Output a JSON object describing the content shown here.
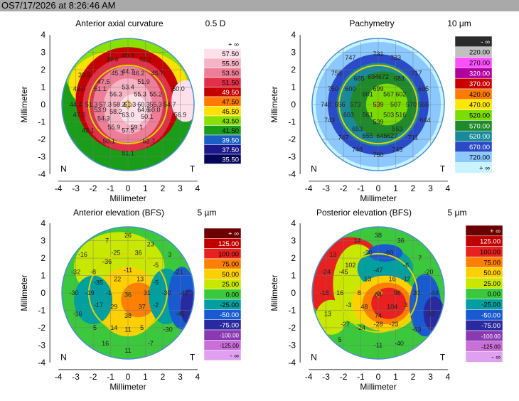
{
  "header": {
    "title": "OS7/17/2026 at 8:26:46 AM"
  },
  "chart_data": [
    {
      "type": "heatmap",
      "title": "Anterior axial curvature",
      "xlabel": "Millimeter",
      "ylabel": "Millimeter",
      "xlim": [
        -4,
        4
      ],
      "ylim": [
        -4,
        4
      ],
      "xticks": [
        "-4",
        "-3",
        "-2",
        "-1",
        "0",
        "1",
        "2",
        "3",
        "4"
      ],
      "yticks": [
        "4",
        "3",
        "2",
        "1",
        "0",
        "-1",
        "-2",
        "-3",
        "-4"
      ],
      "orientation_left": "N",
      "orientation_right": "T",
      "scale_step": "0.5 D",
      "scale_labels": [
        "+ ∞",
        "57.50",
        "55.50",
        "53.50",
        "51.50",
        "49.50",
        "47.50",
        "45.50",
        "43.50",
        "41.50",
        "39.50",
        "37.50",
        "35.50"
      ],
      "scale_colors": [
        "#ffffff",
        "#fde0ea",
        "#f7b3c6",
        "#ee7e97",
        "#e0304a",
        "#c40000",
        "#ff7a00",
        "#ffe000",
        "#8ae000",
        "#1a9e1a",
        "#1b5ec5",
        "#1a1a8c",
        "#05055a"
      ],
      "points": [
        {
          "x": -0.9,
          "y": 2.6,
          "v": "39.6"
        },
        {
          "x": 0.0,
          "y": 2.8,
          "v": "40.3"
        },
        {
          "x": 1.0,
          "y": 2.6,
          "v": "42.2"
        },
        {
          "x": -2.5,
          "y": 1.7,
          "v": "39.9"
        },
        {
          "x": -0.6,
          "y": 1.8,
          "v": "45.3"
        },
        {
          "x": 0.0,
          "y": 1.9,
          "v": "44.7"
        },
        {
          "x": 0.6,
          "y": 1.8,
          "v": "46.2"
        },
        {
          "x": 1.7,
          "y": 1.8,
          "v": "45.7"
        },
        {
          "x": -1.4,
          "y": 1.3,
          "v": "47.5"
        },
        {
          "x": 0.9,
          "y": 1.3,
          "v": "51.9"
        },
        {
          "x": -2.8,
          "y": 0.9,
          "v": "42.0"
        },
        {
          "x": -1.6,
          "y": 0.9,
          "v": "51.1"
        },
        {
          "x": 0.0,
          "y": 1.0,
          "v": "53.4"
        },
        {
          "x": 2.9,
          "y": 0.9,
          "v": "50.0"
        },
        {
          "x": -0.7,
          "y": 0.6,
          "v": "56.3"
        },
        {
          "x": 0.7,
          "y": 0.6,
          "v": "55.3"
        },
        {
          "x": 1.6,
          "y": 0.6,
          "v": "55.2"
        },
        {
          "x": -3.0,
          "y": 0.0,
          "v": "44.4"
        },
        {
          "x": -2.1,
          "y": 0.0,
          "v": "51.3"
        },
        {
          "x": -1.3,
          "y": 0.0,
          "v": "57.3"
        },
        {
          "x": -0.5,
          "y": 0.0,
          "v": "58.2"
        },
        {
          "x": 0.1,
          "y": 0.0,
          "v": "61.3"
        },
        {
          "x": 0.9,
          "y": 0.0,
          "v": "60.3"
        },
        {
          "x": 1.6,
          "y": 0.0,
          "v": "55.3"
        },
        {
          "x": 2.4,
          "y": 0.0,
          "v": "54.7"
        },
        {
          "x": -0.7,
          "y": -0.4,
          "v": "58.2"
        },
        {
          "x": -2.8,
          "y": -0.6,
          "v": "47.0"
        },
        {
          "x": -1.6,
          "y": -0.3,
          "v": "53.9"
        },
        {
          "x": 0.9,
          "y": -0.3,
          "v": "64.6"
        },
        {
          "x": 1.5,
          "y": -0.3,
          "v": "60.0"
        },
        {
          "x": 0.0,
          "y": -0.6,
          "v": "63.0"
        },
        {
          "x": -1.4,
          "y": -0.8,
          "v": "54.3"
        },
        {
          "x": 1.1,
          "y": -0.7,
          "v": "50.1"
        },
        {
          "x": 3.0,
          "y": -0.6,
          "v": "56.9"
        },
        {
          "x": -0.8,
          "y": -1.3,
          "v": "55.9"
        },
        {
          "x": 0.5,
          "y": -1.3,
          "v": "59.1"
        },
        {
          "x": -2.3,
          "y": -1.5,
          "v": "49.1"
        },
        {
          "x": 0.0,
          "y": -1.5,
          "v": "57.5"
        },
        {
          "x": -1.1,
          "y": -2.1,
          "v": "50.1"
        },
        {
          "x": 1.2,
          "y": -2.1,
          "v": "52.7"
        },
        {
          "x": 0.0,
          "y": -2.8,
          "v": "51.1"
        }
      ]
    },
    {
      "type": "heatmap",
      "title": "Pachymetry",
      "xlabel": "Millimeter",
      "ylabel": "Millimeter",
      "xlim": [
        -4,
        4
      ],
      "ylim": [
        -4,
        4
      ],
      "xticks": [
        "-4",
        "-3",
        "-2",
        "-1",
        "0",
        "1",
        "2",
        "3",
        "4"
      ],
      "yticks": [
        "4",
        "3",
        "2",
        "1",
        "0",
        "-1",
        "-2",
        "-3",
        "-4"
      ],
      "orientation_left": "N",
      "orientation_right": "T",
      "scale_step": "10 µm",
      "scale_labels": [
        "- ∞",
        "220.00",
        "270.00",
        "320.00",
        "370.00",
        "420.00",
        "470.00",
        "520.00",
        "570.00",
        "620.00",
        "670.00",
        "720.00",
        "+ ∞"
      ],
      "scale_colors": [
        "#2a2a2a",
        "#c0c0c0",
        "#ff50ff",
        "#b000a0",
        "#c80000",
        "#ff7a00",
        "#ffe800",
        "#7adc00",
        "#1f8a2a",
        "#1a8a9a",
        "#2a4ac8",
        "#8ac8ff",
        "#c8f4ff"
      ],
      "points": [
        {
          "x": -1.6,
          "y": 2.7,
          "v": "747"
        },
        {
          "x": 0.0,
          "y": 2.9,
          "v": "731"
        },
        {
          "x": 1.0,
          "y": 2.7,
          "v": "723"
        },
        {
          "x": -2.4,
          "y": 1.8,
          "v": "758"
        },
        {
          "x": 2.2,
          "y": 1.8,
          "v": "717"
        },
        {
          "x": -0.3,
          "y": 1.6,
          "v": "694"
        },
        {
          "x": 0.3,
          "y": 1.6,
          "v": "672"
        },
        {
          "x": -1.1,
          "y": 1.5,
          "v": "685"
        },
        {
          "x": 1.2,
          "y": 1.5,
          "v": "683"
        },
        {
          "x": -2.6,
          "y": 0.9,
          "v": "750"
        },
        {
          "x": -1.6,
          "y": 0.9,
          "v": "600"
        },
        {
          "x": 2.6,
          "y": 0.9,
          "v": "695"
        },
        {
          "x": -0.6,
          "y": 0.6,
          "v": "601"
        },
        {
          "x": 0.0,
          "y": 0.9,
          "v": "699"
        },
        {
          "x": 0.6,
          "y": 0.6,
          "v": "567"
        },
        {
          "x": 1.3,
          "y": 0.6,
          "v": "602"
        },
        {
          "x": -3.0,
          "y": 0.0,
          "v": "740"
        },
        {
          "x": -2.2,
          "y": 0.0,
          "v": "656"
        },
        {
          "x": -1.3,
          "y": 0.0,
          "v": "573"
        },
        {
          "x": 0.0,
          "y": 0.0,
          "v": "539"
        },
        {
          "x": 1.0,
          "y": 0.0,
          "v": "507"
        },
        {
          "x": 1.9,
          "y": 0.0,
          "v": "570"
        },
        {
          "x": 2.6,
          "y": 0.0,
          "v": "566"
        },
        {
          "x": -1.7,
          "y": -0.6,
          "v": "603"
        },
        {
          "x": -0.6,
          "y": -0.6,
          "v": "561"
        },
        {
          "x": 0.6,
          "y": -0.6,
          "v": "503"
        },
        {
          "x": 1.3,
          "y": -0.6,
          "v": "516"
        },
        {
          "x": 0.0,
          "y": -1.0,
          "v": "539"
        },
        {
          "x": -2.8,
          "y": -0.9,
          "v": "743"
        },
        {
          "x": 2.7,
          "y": -0.9,
          "v": "644"
        },
        {
          "x": -1.2,
          "y": -1.4,
          "v": "653"
        },
        {
          "x": 1.1,
          "y": -1.4,
          "v": "553"
        },
        {
          "x": -0.6,
          "y": -1.8,
          "v": "655"
        },
        {
          "x": 0.2,
          "y": -1.8,
          "v": "646"
        },
        {
          "x": 0.8,
          "y": -1.8,
          "v": "627"
        },
        {
          "x": -2.0,
          "y": -1.9,
          "v": "747"
        },
        {
          "x": 2.0,
          "y": -1.9,
          "v": "711"
        },
        {
          "x": -1.2,
          "y": -2.6,
          "v": "748"
        },
        {
          "x": 1.1,
          "y": -2.6,
          "v": "743"
        },
        {
          "x": 0.0,
          "y": -2.9,
          "v": "750"
        }
      ]
    },
    {
      "type": "heatmap",
      "title": "Anterior elevation (BFS)",
      "xlabel": "Millimeter",
      "ylabel": "Millimeter",
      "xlim": [
        -4,
        4
      ],
      "ylim": [
        -4,
        4
      ],
      "xticks": [
        "-4",
        "-3",
        "-2",
        "-1",
        "0",
        "1",
        "2",
        "3",
        "4"
      ],
      "yticks": [
        "4",
        "3",
        "2",
        "1",
        "0",
        "-1",
        "-2",
        "-3",
        "-4"
      ],
      "orientation_left": "N",
      "orientation_right": "T",
      "scale_step": "5 µm",
      "scale_labels": [
        "+ ∞",
        "125.00",
        "100.00",
        "75.00",
        "50.00",
        "25.00",
        "0.00",
        "-25.00",
        "-50.00",
        "-75.00",
        "-100.00",
        "-125.00",
        "- ∞"
      ],
      "scale_colors": [
        "#6a0000",
        "#c00000",
        "#e82020",
        "#ff8000",
        "#ffd000",
        "#c8e800",
        "#3cc83c",
        "#00a0a0",
        "#1a5ad0",
        "#2a2aa0",
        "#8a3ab0",
        "#c870d8",
        "#e0a0f0"
      ],
      "points": [
        {
          "x": 0.0,
          "y": 3.3,
          "v": "26"
        },
        {
          "x": -1.2,
          "y": 3.0,
          "v": "7"
        },
        {
          "x": 1.3,
          "y": 2.8,
          "v": "23"
        },
        {
          "x": -2.6,
          "y": 2.2,
          "v": "-16"
        },
        {
          "x": -0.7,
          "y": 2.3,
          "v": "-25"
        },
        {
          "x": 0.6,
          "y": 2.3,
          "v": "36"
        },
        {
          "x": -1.2,
          "y": 1.8,
          "v": "-36"
        },
        {
          "x": 2.4,
          "y": 2.2,
          "v": "3"
        },
        {
          "x": 1.6,
          "y": 1.6,
          "v": "-5"
        },
        {
          "x": -3.0,
          "y": 1.2,
          "v": "-32"
        },
        {
          "x": -2.0,
          "y": 1.2,
          "v": "-8"
        },
        {
          "x": 0.0,
          "y": 1.3,
          "v": "-11"
        },
        {
          "x": -0.6,
          "y": 0.8,
          "v": "22"
        },
        {
          "x": 0.7,
          "y": 0.8,
          "v": "13"
        },
        {
          "x": 2.9,
          "y": 1.2,
          "v": "-21"
        },
        {
          "x": -1.7,
          "y": 0.6,
          "v": "-35"
        },
        {
          "x": 1.6,
          "y": 0.6,
          "v": "-5"
        },
        {
          "x": -3.1,
          "y": 0.0,
          "v": "-30"
        },
        {
          "x": -2.2,
          "y": 0.0,
          "v": "-19"
        },
        {
          "x": -1.1,
          "y": 0.0,
          "v": "-1"
        },
        {
          "x": 0.0,
          "y": -0.1,
          "v": "36"
        },
        {
          "x": 1.1,
          "y": 0.0,
          "v": "31"
        },
        {
          "x": 2.2,
          "y": 0.0,
          "v": "-30"
        },
        {
          "x": 3.2,
          "y": 0.0,
          "v": "-42"
        },
        {
          "x": -1.7,
          "y": -0.7,
          "v": "-17"
        },
        {
          "x": -0.8,
          "y": -0.8,
          "v": "29"
        },
        {
          "x": 0.8,
          "y": -0.8,
          "v": "37"
        },
        {
          "x": 1.6,
          "y": -0.7,
          "v": "-2"
        },
        {
          "x": -2.9,
          "y": -1.2,
          "v": "-16"
        },
        {
          "x": 0.0,
          "y": -1.3,
          "v": "38"
        },
        {
          "x": 3.0,
          "y": -1.2,
          "v": "-45"
        },
        {
          "x": -1.9,
          "y": -2.0,
          "v": "5"
        },
        {
          "x": -0.8,
          "y": -2.0,
          "v": "14"
        },
        {
          "x": 0.0,
          "y": -2.1,
          "v": "11"
        },
        {
          "x": 0.8,
          "y": -2.0,
          "v": "5"
        },
        {
          "x": 2.3,
          "y": -2.1,
          "v": "-30"
        },
        {
          "x": -1.3,
          "y": -2.9,
          "v": "16"
        },
        {
          "x": 1.3,
          "y": -2.9,
          "v": "-7"
        },
        {
          "x": 0.0,
          "y": -3.3,
          "v": "11"
        }
      ]
    },
    {
      "type": "heatmap",
      "title": "Posterior elevation (BFS)",
      "xlabel": "Millimeter",
      "ylabel": "Millimeter",
      "xlim": [
        -4,
        4
      ],
      "ylim": [
        -4,
        4
      ],
      "xticks": [
        "-4",
        "-3",
        "-2",
        "-1",
        "0",
        "1",
        "2",
        "3",
        "4"
      ],
      "yticks": [
        "4",
        "3",
        "2",
        "1",
        "0",
        "-1",
        "-2",
        "-3",
        "-4"
      ],
      "orientation_left": "N",
      "orientation_right": "T",
      "scale_step": "5 µm",
      "scale_labels": [
        "+ ∞",
        "125.00",
        "100.00",
        "75.00",
        "50.00",
        "25.00",
        "0.00",
        "-25.00",
        "-50.00",
        "-75.00",
        "-100.00",
        "-125.00",
        "- ∞"
      ],
      "scale_colors": [
        "#6a0000",
        "#c00000",
        "#e82020",
        "#ff8000",
        "#ffd000",
        "#c8e800",
        "#3cc83c",
        "#00a0a0",
        "#1a5ad0",
        "#2a2aa0",
        "#8a3ab0",
        "#c870d8",
        "#e0a0f0"
      ],
      "points": [
        {
          "x": 0.0,
          "y": 3.3,
          "v": "38"
        },
        {
          "x": -1.2,
          "y": 3.0,
          "v": "14"
        },
        {
          "x": 1.3,
          "y": 3.0,
          "v": "36"
        },
        {
          "x": -2.6,
          "y": 2.2,
          "v": "13"
        },
        {
          "x": -0.6,
          "y": 2.3,
          "v": "-30"
        },
        {
          "x": 0.6,
          "y": 2.3,
          "v": "-60"
        },
        {
          "x": 2.4,
          "y": 2.0,
          "v": "7"
        },
        {
          "x": -1.6,
          "y": 1.6,
          "v": "102"
        },
        {
          "x": 0.0,
          "y": 1.3,
          "v": "-47"
        },
        {
          "x": 1.6,
          "y": 1.6,
          "v": "-6"
        },
        {
          "x": -3.0,
          "y": 1.2,
          "v": "-24"
        },
        {
          "x": -2.0,
          "y": 1.2,
          "v": "-45"
        },
        {
          "x": -0.6,
          "y": 0.8,
          "v": "13"
        },
        {
          "x": 0.8,
          "y": 0.8,
          "v": "16"
        },
        {
          "x": 1.6,
          "y": 0.8,
          "v": "-12"
        },
        {
          "x": 2.9,
          "y": 1.2,
          "v": "-20"
        },
        {
          "x": -3.1,
          "y": 0.0,
          "v": "-18"
        },
        {
          "x": -2.2,
          "y": 0.0,
          "v": "16"
        },
        {
          "x": -1.1,
          "y": 0.0,
          "v": "8"
        },
        {
          "x": 0.0,
          "y": -0.1,
          "v": "64"
        },
        {
          "x": 1.1,
          "y": 0.0,
          "v": "96"
        },
        {
          "x": 2.2,
          "y": 0.0,
          "v": "20"
        },
        {
          "x": 3.2,
          "y": 0.0,
          "v": "-44"
        },
        {
          "x": -1.7,
          "y": -0.7,
          "v": "-3"
        },
        {
          "x": -0.8,
          "y": -0.8,
          "v": "48"
        },
        {
          "x": 0.8,
          "y": -0.8,
          "v": "104"
        },
        {
          "x": 1.6,
          "y": -0.7,
          "v": "3"
        },
        {
          "x": -2.9,
          "y": -1.2,
          "v": "13"
        },
        {
          "x": 0.0,
          "y": -1.3,
          "v": "74"
        },
        {
          "x": 3.0,
          "y": -1.2,
          "v": "-33"
        },
        {
          "x": -1.9,
          "y": -1.8,
          "v": "-27"
        },
        {
          "x": -1.0,
          "y": -2.0,
          "v": "-24"
        },
        {
          "x": 0.0,
          "y": -1.8,
          "v": "-28"
        },
        {
          "x": 0.9,
          "y": -1.8,
          "v": "-23"
        },
        {
          "x": 2.2,
          "y": -2.1,
          "v": "-63"
        },
        {
          "x": -2.2,
          "y": -2.7,
          "v": "5"
        },
        {
          "x": 0.0,
          "y": -3.0,
          "v": "-11"
        },
        {
          "x": 1.2,
          "y": -2.9,
          "v": "-40"
        }
      ]
    }
  ]
}
